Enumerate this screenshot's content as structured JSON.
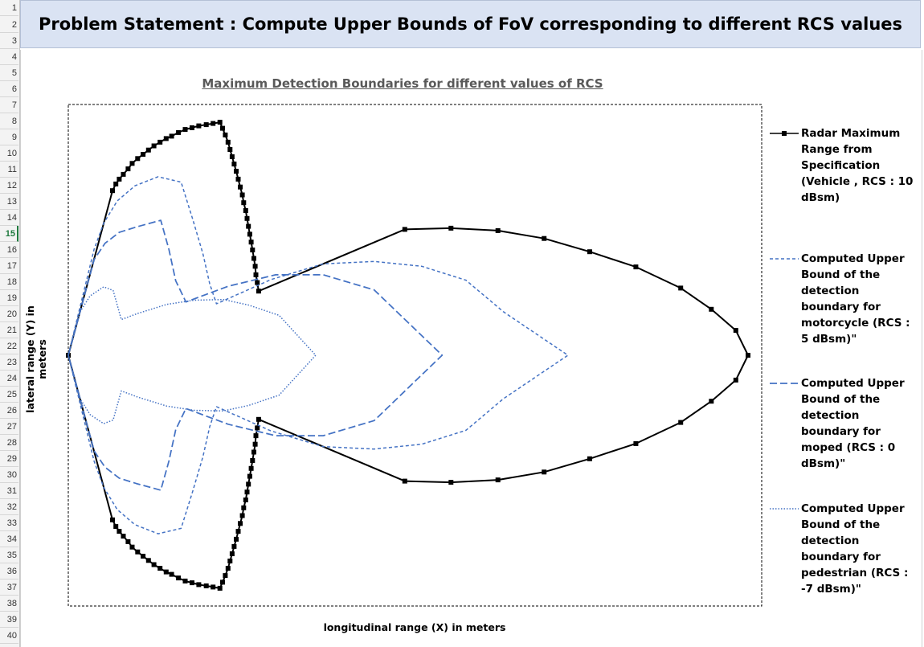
{
  "spreadsheet": {
    "row_numbers": [
      "1",
      "2",
      "3",
      "4",
      "5",
      "6",
      "7",
      "8",
      "9",
      "10",
      "11",
      "12",
      "13",
      "14",
      "15",
      "16",
      "17",
      "18",
      "19",
      "20",
      "21",
      "22",
      "23",
      "24",
      "25",
      "26",
      "27",
      "28",
      "29",
      "30",
      "31",
      "32",
      "33",
      "34",
      "35",
      "36",
      "37",
      "38",
      "39",
      "40"
    ],
    "active_row": "15"
  },
  "banner": {
    "title": "Problem Statement : Compute Upper Bounds of FoV corresponding to different RCS values"
  },
  "chart_data": {
    "type": "scatter",
    "title": "Maximum Detection Boundaries for different values of RCS",
    "xlabel": "longitudinal range (X) in meters",
    "ylabel": "lateral range (Y) in meters",
    "xlim": [
      0,
      100
    ],
    "ylim": [
      -40,
      40
    ],
    "grid": false,
    "legend_position": "right",
    "colors": {
      "vehicle": "#000000",
      "blue": "#4472c4"
    },
    "series": [
      {
        "name": "Radar Maximum Range from Specification (Vehicle , RCS : 10 dBsm)",
        "style": "solid-marker",
        "points": [
          [
            0,
            0
          ],
          [
            6.5,
            27.2
          ],
          [
            7,
            28.3
          ],
          [
            7.5,
            29.1
          ],
          [
            8.1,
            29.9
          ],
          [
            8.8,
            30.8
          ],
          [
            9.4,
            31.7
          ],
          [
            10.2,
            32.5
          ],
          [
            11,
            33.2
          ],
          [
            11.8,
            33.9
          ],
          [
            12.6,
            34.6
          ],
          [
            13.5,
            35.2
          ],
          [
            14.4,
            35.8
          ],
          [
            15.2,
            36.2
          ],
          [
            16.2,
            36.8
          ],
          [
            17.2,
            37.3
          ],
          [
            18.2,
            37.6
          ],
          [
            19.2,
            37.9
          ],
          [
            20.3,
            38.1
          ],
          [
            21.3,
            38.3
          ],
          [
            22.3,
            38.5
          ],
          [
            22.7,
            37.5
          ],
          [
            23.1,
            36.4
          ],
          [
            23.5,
            35.2
          ],
          [
            23.8,
            34
          ],
          [
            24.1,
            32.8
          ],
          [
            24.4,
            31.6
          ],
          [
            24.7,
            30.4
          ],
          [
            25,
            29.1
          ],
          [
            25.3,
            27.8
          ],
          [
            25.6,
            26.5
          ],
          [
            25.8,
            25.2
          ],
          [
            26.1,
            23.9
          ],
          [
            26.3,
            22.6
          ],
          [
            26.5,
            21.3
          ],
          [
            26.7,
            20
          ],
          [
            26.9,
            18.7
          ],
          [
            27.1,
            17.4
          ],
          [
            27.3,
            16
          ],
          [
            27.5,
            14.7
          ],
          [
            27.6,
            13.3
          ],
          [
            27.8,
            12
          ],
          [
            28,
            10.6
          ],
          [
            49.5,
            20.8
          ],
          [
            56.3,
            21
          ],
          [
            63.2,
            20.6
          ],
          [
            70,
            19.3
          ],
          [
            76.7,
            17.1
          ],
          [
            83.5,
            14.6
          ],
          [
            90.1,
            11.1
          ],
          [
            94.6,
            7.6
          ],
          [
            98.2,
            4.1
          ],
          [
            100,
            0
          ],
          [
            98.2,
            -4.1
          ],
          [
            94.6,
            -7.6
          ],
          [
            90.1,
            -11.1
          ],
          [
            83.5,
            -14.6
          ],
          [
            76.7,
            -17.1
          ],
          [
            70,
            -19.3
          ],
          [
            63.2,
            -20.6
          ],
          [
            56.3,
            -21
          ],
          [
            49.5,
            -20.8
          ],
          [
            28,
            -10.6
          ],
          [
            27.8,
            -12
          ],
          [
            27.6,
            -13.3
          ],
          [
            27.5,
            -14.7
          ],
          [
            27.3,
            -16
          ],
          [
            27.1,
            -17.4
          ],
          [
            26.9,
            -18.7
          ],
          [
            26.7,
            -20
          ],
          [
            26.5,
            -21.3
          ],
          [
            26.3,
            -22.6
          ],
          [
            26.1,
            -23.9
          ],
          [
            25.8,
            -25.2
          ],
          [
            25.6,
            -26.5
          ],
          [
            25.3,
            -27.8
          ],
          [
            25,
            -29.1
          ],
          [
            24.7,
            -30.4
          ],
          [
            24.4,
            -31.6
          ],
          [
            24.1,
            -32.8
          ],
          [
            23.8,
            -34
          ],
          [
            23.5,
            -35.2
          ],
          [
            23.1,
            -36.4
          ],
          [
            22.7,
            -37.5
          ],
          [
            22.3,
            -38.5
          ],
          [
            21.3,
            -38.3
          ],
          [
            20.3,
            -38.1
          ],
          [
            19.2,
            -37.9
          ],
          [
            18.2,
            -37.6
          ],
          [
            17.2,
            -37.3
          ],
          [
            16.2,
            -36.8
          ],
          [
            15.2,
            -36.2
          ],
          [
            14.4,
            -35.8
          ],
          [
            13.5,
            -35.2
          ],
          [
            12.6,
            -34.6
          ],
          [
            11.8,
            -33.9
          ],
          [
            11,
            -33.2
          ],
          [
            10.2,
            -32.5
          ],
          [
            9.4,
            -31.7
          ],
          [
            8.8,
            -30.8
          ],
          [
            8.1,
            -29.9
          ],
          [
            7.5,
            -29.1
          ],
          [
            7,
            -28.3
          ],
          [
            6.5,
            -27.2
          ],
          [
            0,
            0
          ]
        ]
      },
      {
        "name": "Computed Upper Bound of the detection boundary for motorcycle (RCS : 5 dBsm)\"",
        "style": "short-dash",
        "points": [
          [
            0,
            0
          ],
          [
            3.8,
            17.5
          ],
          [
            5.2,
            21.8
          ],
          [
            7.2,
            25.5
          ],
          [
            9.8,
            28
          ],
          [
            13.2,
            29.5
          ],
          [
            16.6,
            28.6
          ],
          [
            18.3,
            22.5
          ],
          [
            19.8,
            16.8
          ],
          [
            20.8,
            11.8
          ],
          [
            21.8,
            8.5
          ],
          [
            29.8,
            12.5
          ],
          [
            37.5,
            15.1
          ],
          [
            45,
            15.5
          ],
          [
            52,
            14.7
          ],
          [
            58.5,
            12.4
          ],
          [
            64,
            7.2
          ],
          [
            73.5,
            0
          ],
          [
            64,
            -7.2
          ],
          [
            58.5,
            -12.4
          ],
          [
            52,
            -14.7
          ],
          [
            45,
            -15.5
          ],
          [
            37.5,
            -15.1
          ],
          [
            29.8,
            -12.5
          ],
          [
            21.8,
            -8.5
          ],
          [
            20.8,
            -11.8
          ],
          [
            19.8,
            -16.8
          ],
          [
            18.3,
            -22.5
          ],
          [
            16.6,
            -28.6
          ],
          [
            13.2,
            -29.5
          ],
          [
            9.8,
            -28
          ],
          [
            7.2,
            -25.5
          ],
          [
            5.2,
            -21.8
          ],
          [
            3.8,
            -17.5
          ],
          [
            0,
            0
          ]
        ]
      },
      {
        "name": "Computed Upper Bound of the detection boundary for moped (RCS : 0 dBsm)\"",
        "style": "long-dash",
        "points": [
          [
            0,
            0
          ],
          [
            3.8,
            15.8
          ],
          [
            5.4,
            18.5
          ],
          [
            7.5,
            20.3
          ],
          [
            10,
            21.2
          ],
          [
            13.6,
            22.3
          ],
          [
            14.8,
            17.5
          ],
          [
            15.8,
            12.3
          ],
          [
            17.3,
            8.8
          ],
          [
            23.5,
            11.4
          ],
          [
            30.5,
            13.3
          ],
          [
            37.5,
            13.3
          ],
          [
            45,
            10.8
          ],
          [
            55,
            0
          ],
          [
            45,
            -10.8
          ],
          [
            37.5,
            -13.3
          ],
          [
            30.5,
            -13.3
          ],
          [
            23.5,
            -11.4
          ],
          [
            17.3,
            -8.8
          ],
          [
            15.8,
            -12.3
          ],
          [
            14.8,
            -17.5
          ],
          [
            13.6,
            -22.3
          ],
          [
            10,
            -21.2
          ],
          [
            7.5,
            -20.3
          ],
          [
            5.4,
            -18.5
          ],
          [
            3.8,
            -15.8
          ],
          [
            0,
            0
          ]
        ]
      },
      {
        "name": "Computed Upper Bound of the detection boundary for pedestrian (RCS : -7 dBsm)\"",
        "style": "dotted",
        "points": [
          [
            0,
            0
          ],
          [
            1.8,
            7.3
          ],
          [
            3.2,
            9.8
          ],
          [
            5.2,
            11.3
          ],
          [
            6.6,
            10.7
          ],
          [
            7.8,
            5.9
          ],
          [
            10.2,
            6.9
          ],
          [
            14.5,
            8.4
          ],
          [
            18.5,
            9.1
          ],
          [
            22.8,
            9.2
          ],
          [
            26.5,
            8.3
          ],
          [
            31,
            6.6
          ],
          [
            36.4,
            0
          ],
          [
            31,
            -6.6
          ],
          [
            26.5,
            -8.3
          ],
          [
            22.8,
            -9.2
          ],
          [
            18.5,
            -9.1
          ],
          [
            14.5,
            -8.4
          ],
          [
            10.2,
            -6.9
          ],
          [
            7.8,
            -5.9
          ],
          [
            6.6,
            -10.7
          ],
          [
            5.2,
            -11.3
          ],
          [
            3.2,
            -9.8
          ],
          [
            1.8,
            -7.3
          ],
          [
            0,
            0
          ]
        ]
      }
    ]
  }
}
